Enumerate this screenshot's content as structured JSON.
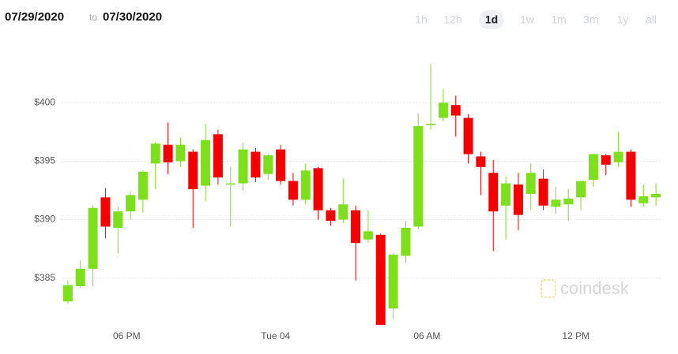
{
  "header": {
    "from": "07/29/2020",
    "separator": "to",
    "to": "07/30/2020",
    "ranges": [
      "1h",
      "12h",
      "1d",
      "1w",
      "1m",
      "3m",
      "1y",
      "all"
    ],
    "selected_range": "1d"
  },
  "watermark": "coindesk",
  "chart_data": {
    "type": "candlestick",
    "categories": [
      null,
      null,
      null,
      null,
      null,
      null,
      null,
      null,
      null,
      null,
      null,
      null,
      null,
      null,
      null,
      null,
      null,
      null,
      null,
      null,
      null,
      null,
      null,
      null,
      null,
      null,
      null,
      null,
      null,
      null,
      null,
      null,
      null,
      null,
      null,
      null,
      null,
      null,
      null,
      null,
      null,
      null,
      null,
      null,
      null,
      null,
      null,
      null
    ],
    "open": [
      383.0,
      384.3,
      385.8,
      391.9,
      389.3,
      390.7,
      391.7,
      394.8,
      396.4,
      395.0,
      395.8,
      392.9,
      397.3,
      393.0,
      393.1,
      395.8,
      393.9,
      396.0,
      393.3,
      391.7,
      394.4,
      390.8,
      390.0,
      390.8,
      388.3,
      388.7,
      382.4,
      386.9,
      389.4,
      398.1,
      398.7,
      399.8,
      398.7,
      395.4,
      394.0,
      391.2,
      393.0,
      392.2,
      393.5,
      391.1,
      391.3,
      391.9,
      393.4,
      395.5,
      394.9,
      395.8,
      391.4,
      391.9
    ],
    "high": [
      384.8,
      386.5,
      391.2,
      392.7,
      391.1,
      392.4,
      394.2,
      396.6,
      398.3,
      397.0,
      396.0,
      398.2,
      397.7,
      394.5,
      396.6,
      396.1,
      395.6,
      396.4,
      394.0,
      394.8,
      394.5,
      391.0,
      393.5,
      391.2,
      390.8,
      388.8,
      387.1,
      389.9,
      399.1,
      403.3,
      401.2,
      400.6,
      399.0,
      395.8,
      395.1,
      393.7,
      394.0,
      394.8,
      394.3,
      392.8,
      392.6,
      393.3,
      395.6,
      395.6,
      397.5,
      396.0,
      393.0,
      393.1
    ],
    "low": [
      382.8,
      384.2,
      384.3,
      388.4,
      387.1,
      390.0,
      390.6,
      392.6,
      393.9,
      394.5,
      389.3,
      391.6,
      393.0,
      389.4,
      392.5,
      393.2,
      393.4,
      393.0,
      391.2,
      391.3,
      390.0,
      389.5,
      389.7,
      384.8,
      388.0,
      381.0,
      381.5,
      386.3,
      389.2,
      397.7,
      398.4,
      397.1,
      394.8,
      392.1,
      387.3,
      388.3,
      389.1,
      390.8,
      390.8,
      390.5,
      389.9,
      390.8,
      392.8,
      393.8,
      394.5,
      391.1,
      391.1,
      391.2
    ],
    "close": [
      384.4,
      385.8,
      391.0,
      389.4,
      390.7,
      392.1,
      394.1,
      396.5,
      394.9,
      396.4,
      392.6,
      396.8,
      393.6,
      393.1,
      396.0,
      393.6,
      395.5,
      393.3,
      391.7,
      394.2,
      390.8,
      389.9,
      391.3,
      388.0,
      389.0,
      381.0,
      387.0,
      389.3,
      398.0,
      398.2,
      400.0,
      398.9,
      395.6,
      394.5,
      390.7,
      393.1,
      390.4,
      394.0,
      391.2,
      391.7,
      391.8,
      393.3,
      395.6,
      394.7,
      395.8,
      391.7,
      392.0,
      392.2
    ],
    "up_color": "#7ee01c",
    "down_color": "#f50000",
    "ylim": [
      381,
      404.4
    ],
    "yticks": [
      {
        "value": 385,
        "label": "$385"
      },
      {
        "value": 390,
        "label": "$390"
      },
      {
        "value": 395,
        "label": "$395"
      },
      {
        "value": 400,
        "label": "$400"
      }
    ],
    "xticks": [
      {
        "value": 4.7,
        "label": "06 PM"
      },
      {
        "value": 16.6,
        "label": "Tue 04"
      },
      {
        "value": 28.7,
        "label": "06 AM"
      },
      {
        "value": 40.6,
        "label": "12 PM"
      }
    ],
    "grid": true
  }
}
